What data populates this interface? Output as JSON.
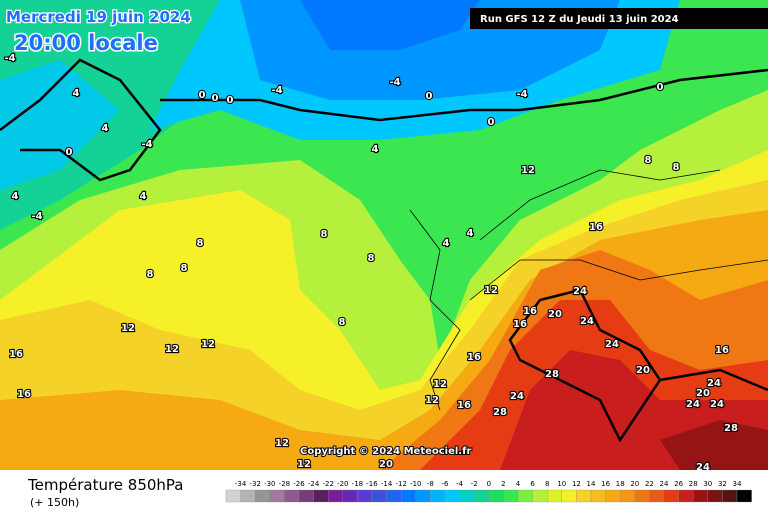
{
  "header": {
    "date": "Mercredi 19 juin 2024",
    "time": "20:00 locale",
    "run": "Run GFS 12 Z du Jeudi 13 juin 2024"
  },
  "footer": {
    "title": "Température 850hPa",
    "lead": "(+ 150h)",
    "copyright": "Copyright © 2024 Meteociel.fr"
  },
  "scale": {
    "labels": [
      -34,
      -32,
      -30,
      -28,
      -26,
      -24,
      -22,
      -20,
      -18,
      -16,
      -14,
      -12,
      -10,
      -8,
      -6,
      -4,
      -2,
      0,
      2,
      4,
      6,
      8,
      10,
      12,
      14,
      16,
      18,
      20,
      22,
      24,
      26,
      28,
      30,
      32,
      34
    ]
  },
  "map": {
    "labels": [
      -4,
      -4,
      -4,
      -4,
      -4,
      -4,
      0,
      0,
      0,
      0,
      0,
      0,
      0,
      4,
      4,
      4,
      4,
      4,
      4,
      4,
      8,
      8,
      8,
      8,
      8,
      8,
      8,
      8,
      12,
      12,
      12,
      12,
      12,
      12,
      12,
      12,
      12,
      16,
      16,
      16,
      16,
      16,
      16,
      16,
      16,
      20,
      20,
      20,
      20,
      24,
      24,
      24,
      24,
      24,
      24,
      24,
      24,
      28,
      28,
      28
    ]
  }
}
